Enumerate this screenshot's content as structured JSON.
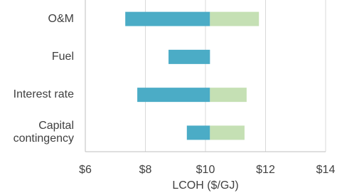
{
  "chart_data": {
    "type": "tornado",
    "orientation": "horizontal",
    "categories": [
      "O&M",
      "Fuel",
      "Interest rate",
      "Capital contingency"
    ],
    "base": 10.15,
    "series": [
      {
        "color": "#4bacc6",
        "values": [
          7.33,
          8.77,
          7.73,
          9.38
        ]
      },
      {
        "color": "#c5e0b4",
        "values": [
          11.78,
          null,
          11.37,
          11.3
        ]
      }
    ],
    "xlabel": "LCOH ($/GJ)",
    "xlim": [
      6,
      14
    ],
    "xticks": [
      {
        "value": 6,
        "label": "$6"
      },
      {
        "value": 8,
        "label": "$8"
      },
      {
        "value": 10,
        "label": "$10"
      },
      {
        "value": 12,
        "label": "$12"
      },
      {
        "value": 14,
        "label": "$14"
      }
    ],
    "grid": true
  }
}
